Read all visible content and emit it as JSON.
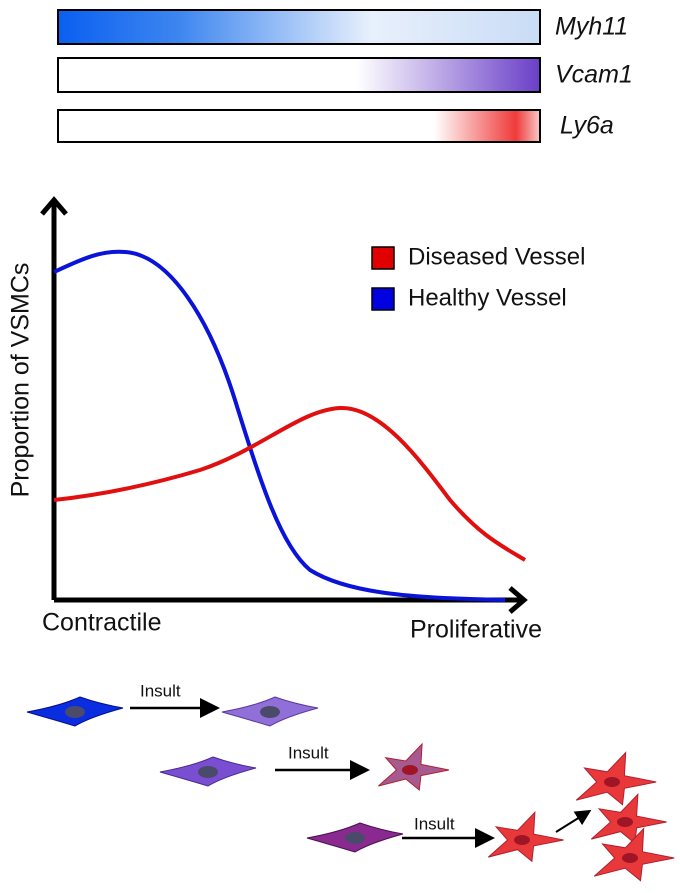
{
  "genes": [
    {
      "label": "Myh11"
    },
    {
      "label": "Vcam1"
    },
    {
      "label": "Ly6a"
    }
  ],
  "graph": {
    "y_axis_label": "Proportion of  VSMCs",
    "x_axis_start": "Contractile",
    "x_axis_end": "Proliferative",
    "legend": [
      {
        "label": "Diseased Vessel",
        "color": "#e00000"
      },
      {
        "label": "Healthy Vessel",
        "color": "#0000e0"
      }
    ]
  },
  "transitions": [
    {
      "label": "Insult"
    },
    {
      "label": "Insult"
    },
    {
      "label": "Insult"
    }
  ]
}
